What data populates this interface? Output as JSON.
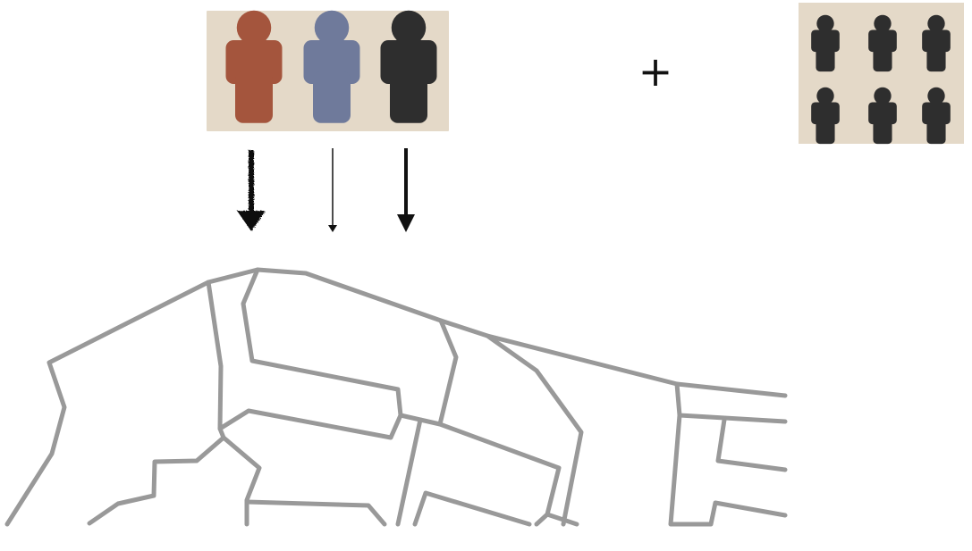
{
  "operator": "+",
  "colors": {
    "panel_bg": "#e4d9c8",
    "meeple_red": "#a4553d",
    "meeple_blue": "#6f7a9b",
    "meeple_black": "#2e2e2e",
    "arrow": "#111111",
    "map_line": "#999999",
    "background": "#ffffff"
  },
  "groups": [
    {
      "id": "colored-meeples",
      "meeples": [
        {
          "color": "red",
          "icon": "meeple-icon"
        },
        {
          "color": "blue",
          "icon": "meeple-icon"
        },
        {
          "color": "black",
          "icon": "meeple-icon"
        }
      ]
    },
    {
      "id": "black-meeples",
      "meeples": [
        {
          "color": "black",
          "icon": "meeple-icon"
        },
        {
          "color": "black",
          "icon": "meeple-icon"
        },
        {
          "color": "black",
          "icon": "meeple-icon"
        },
        {
          "color": "black",
          "icon": "meeple-icon"
        },
        {
          "color": "black",
          "icon": "meeple-icon"
        },
        {
          "color": "black",
          "icon": "meeple-icon"
        }
      ]
    }
  ],
  "arrows": [
    {
      "style": "rough",
      "direction": "down"
    },
    {
      "style": "thin",
      "direction": "down"
    },
    {
      "style": "bold",
      "direction": "down"
    }
  ]
}
